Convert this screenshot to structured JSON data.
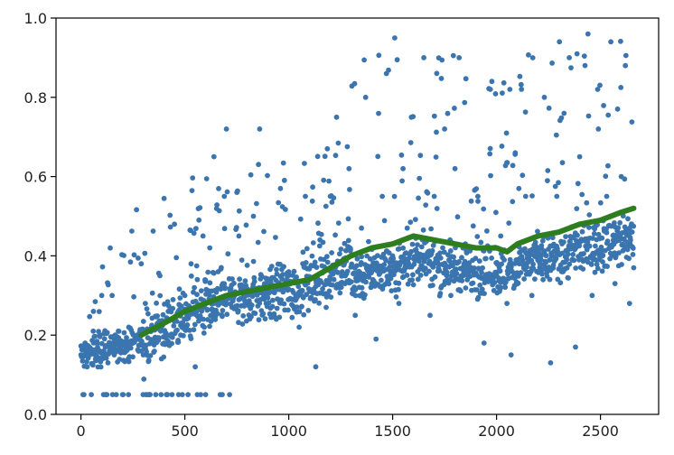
{
  "chart_data": {
    "type": "scatter",
    "title": "",
    "xlabel": "",
    "ylabel": "",
    "xlim": [
      -120,
      2780
    ],
    "ylim": [
      0.0,
      1.0
    ],
    "grid": false,
    "x_ticks": [
      0,
      500,
      1000,
      1500,
      2000,
      2500
    ],
    "x_tick_labels": [
      "0",
      "500",
      "1000",
      "1500",
      "2000",
      "2500"
    ],
    "y_ticks": [
      0.0,
      0.2,
      0.4,
      0.6,
      0.8,
      1.0
    ],
    "y_tick_labels": [
      "0.0",
      "0.2",
      "0.4",
      "0.6",
      "0.8",
      "1.0"
    ],
    "x_range_points": [
      0,
      2660
    ],
    "point_color": "#3b75af",
    "trend_color": "#2e7d1e",
    "series": [
      {
        "kind": "scatter",
        "values": [
          [
            0,
            0.15
          ],
          [
            10,
            0.05
          ],
          [
            20,
            0.18
          ],
          [
            30,
            0.12
          ],
          [
            40,
            0.17
          ],
          [
            50,
            0.05
          ],
          [
            60,
            0.26
          ],
          [
            70,
            0.14
          ],
          [
            80,
            0.16
          ],
          [
            90,
            0.2
          ],
          [
            100,
            0.3
          ],
          [
            110,
            0.16
          ],
          [
            120,
            0.05
          ],
          [
            130,
            0.13
          ],
          [
            140,
            0.18
          ],
          [
            150,
            0.3
          ],
          [
            160,
            0.15
          ],
          [
            170,
            0.05
          ],
          [
            180,
            0.21
          ],
          [
            190,
            0.17
          ],
          [
            200,
            0.05
          ],
          [
            210,
            0.16
          ],
          [
            230,
            0.22
          ],
          [
            250,
            0.18
          ],
          [
            270,
            0.2
          ],
          [
            290,
            0.38
          ],
          [
            300,
            0.15
          ],
          [
            310,
            0.28
          ],
          [
            320,
            0.05
          ],
          [
            340,
            0.22
          ],
          [
            360,
            0.19
          ],
          [
            380,
            0.35
          ],
          [
            400,
            0.18
          ],
          [
            420,
            0.26
          ],
          [
            450,
            0.48
          ],
          [
            470,
            0.05
          ],
          [
            480,
            0.2
          ],
          [
            500,
            0.3
          ],
          [
            520,
            0.25
          ],
          [
            530,
            0.38
          ],
          [
            550,
            0.12
          ],
          [
            560,
            0.34
          ],
          [
            590,
            0.27
          ],
          [
            600,
            0.05
          ],
          [
            620,
            0.42
          ],
          [
            640,
            0.65
          ],
          [
            660,
            0.36
          ],
          [
            680,
            0.05
          ],
          [
            690,
            0.55
          ],
          [
            700,
            0.72
          ],
          [
            720,
            0.3
          ],
          [
            760,
            0.45
          ],
          [
            800,
            0.28
          ],
          [
            830,
            0.5
          ],
          [
            860,
            0.72
          ],
          [
            900,
            0.33
          ],
          [
            940,
            0.24
          ],
          [
            960,
            0.57
          ],
          [
            1000,
            0.36
          ],
          [
            1020,
            0.29
          ],
          [
            1050,
            0.22
          ],
          [
            1080,
            0.55
          ],
          [
            1100,
            0.31
          ],
          [
            1130,
            0.12
          ],
          [
            1150,
            0.44
          ],
          [
            1180,
            0.27
          ],
          [
            1200,
            0.55
          ],
          [
            1230,
            0.75
          ],
          [
            1260,
            0.35
          ],
          [
            1290,
            0.62
          ],
          [
            1320,
            0.25
          ],
          [
            1350,
            0.47
          ],
          [
            1370,
            0.8
          ],
          [
            1400,
            0.33
          ],
          [
            1420,
            0.19
          ],
          [
            1450,
            0.55
          ],
          [
            1470,
            0.86
          ],
          [
            1500,
            0.4
          ],
          [
            1510,
            0.95
          ],
          [
            1530,
            0.28
          ],
          [
            1550,
            0.62
          ],
          [
            1570,
            0.47
          ],
          [
            1590,
            0.75
          ],
          [
            1620,
            0.36
          ],
          [
            1650,
            0.9
          ],
          [
            1680,
            0.25
          ],
          [
            1700,
            0.55
          ],
          [
            1720,
            0.38
          ],
          [
            1750,
            0.72
          ],
          [
            1780,
            0.3
          ],
          [
            1800,
            0.62
          ],
          [
            1820,
            0.9
          ],
          [
            1850,
            0.43
          ],
          [
            1880,
            0.33
          ],
          [
            1910,
            0.55
          ],
          [
            1940,
            0.18
          ],
          [
            1970,
            0.82
          ],
          [
            2000,
            0.35
          ],
          [
            2020,
            0.45
          ],
          [
            2050,
            0.28
          ],
          [
            2070,
            0.15
          ],
          [
            2090,
            0.66
          ],
          [
            2110,
            0.38
          ],
          [
            2140,
            0.55
          ],
          [
            2170,
            0.3
          ],
          [
            2200,
            0.42
          ],
          [
            2230,
            0.8
          ],
          [
            2260,
            0.13
          ],
          [
            2290,
            0.55
          ],
          [
            2320,
            0.36
          ],
          [
            2350,
            0.9
          ],
          [
            2380,
            0.17
          ],
          [
            2400,
            0.65
          ],
          [
            2420,
            0.44
          ],
          [
            2440,
            0.96
          ],
          [
            2460,
            0.3
          ],
          [
            2490,
            0.72
          ],
          [
            2510,
            0.4
          ],
          [
            2530,
            0.55
          ],
          [
            2550,
            0.94
          ],
          [
            2570,
            0.33
          ],
          [
            2600,
            0.6
          ],
          [
            2620,
            0.88
          ],
          [
            2640,
            0.28
          ],
          [
            2660,
            0.37
          ]
        ]
      },
      {
        "kind": "line",
        "x": [
          290,
          400,
          500,
          600,
          700,
          800,
          900,
          1000,
          1100,
          1200,
          1300,
          1400,
          1500,
          1600,
          1700,
          1800,
          1900,
          2000,
          2050,
          2100,
          2200,
          2300,
          2400,
          2500,
          2600,
          2660
        ],
        "values": [
          0.2,
          0.23,
          0.26,
          0.28,
          0.3,
          0.31,
          0.32,
          0.33,
          0.34,
          0.37,
          0.4,
          0.42,
          0.43,
          0.45,
          0.44,
          0.43,
          0.42,
          0.42,
          0.41,
          0.43,
          0.45,
          0.46,
          0.48,
          0.49,
          0.51,
          0.52
        ]
      }
    ]
  }
}
